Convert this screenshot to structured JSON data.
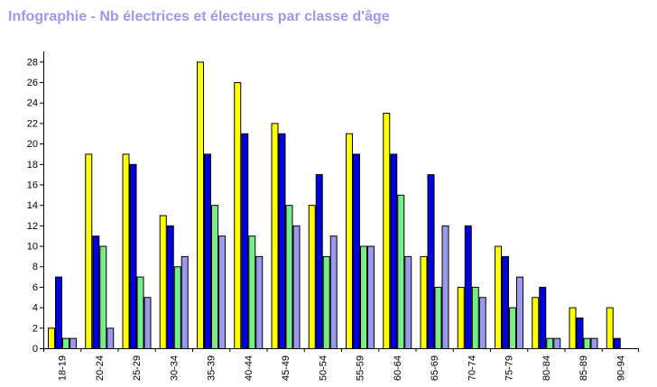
{
  "chart_data": {
    "type": "bar",
    "title": "Infographie - Nb électrices et électeurs par classe d'âge",
    "xlabel": "",
    "ylabel": "",
    "ylim": [
      0,
      29
    ],
    "yticks": [
      0,
      2,
      4,
      6,
      8,
      10,
      12,
      14,
      16,
      18,
      20,
      22,
      24,
      26,
      28
    ],
    "grid": false,
    "legend": "none",
    "categories": [
      "18-19",
      "20-24",
      "25-29",
      "30-34",
      "35-39",
      "40-44",
      "45-49",
      "50-54",
      "55-59",
      "60-64",
      "65-69",
      "70-74",
      "75-79",
      "80-84",
      "85-89",
      "90-94"
    ],
    "series": [
      {
        "color": "#ffff00",
        "values": [
          2,
          19,
          19,
          13,
          28,
          26,
          22,
          14,
          21,
          23,
          9,
          6,
          10,
          5,
          4,
          4
        ]
      },
      {
        "color": "#0000dd",
        "values": [
          7,
          11,
          18,
          12,
          19,
          21,
          21,
          17,
          19,
          19,
          17,
          12,
          9,
          6,
          3,
          1
        ]
      },
      {
        "color": "#77ee88",
        "values": [
          1,
          10,
          7,
          8,
          14,
          11,
          14,
          9,
          10,
          15,
          6,
          6,
          4,
          1,
          1,
          0
        ]
      },
      {
        "color": "#9999ee",
        "values": [
          1,
          2,
          5,
          9,
          11,
          9,
          12,
          11,
          10,
          9,
          12,
          5,
          7,
          1,
          1,
          0
        ]
      }
    ]
  }
}
